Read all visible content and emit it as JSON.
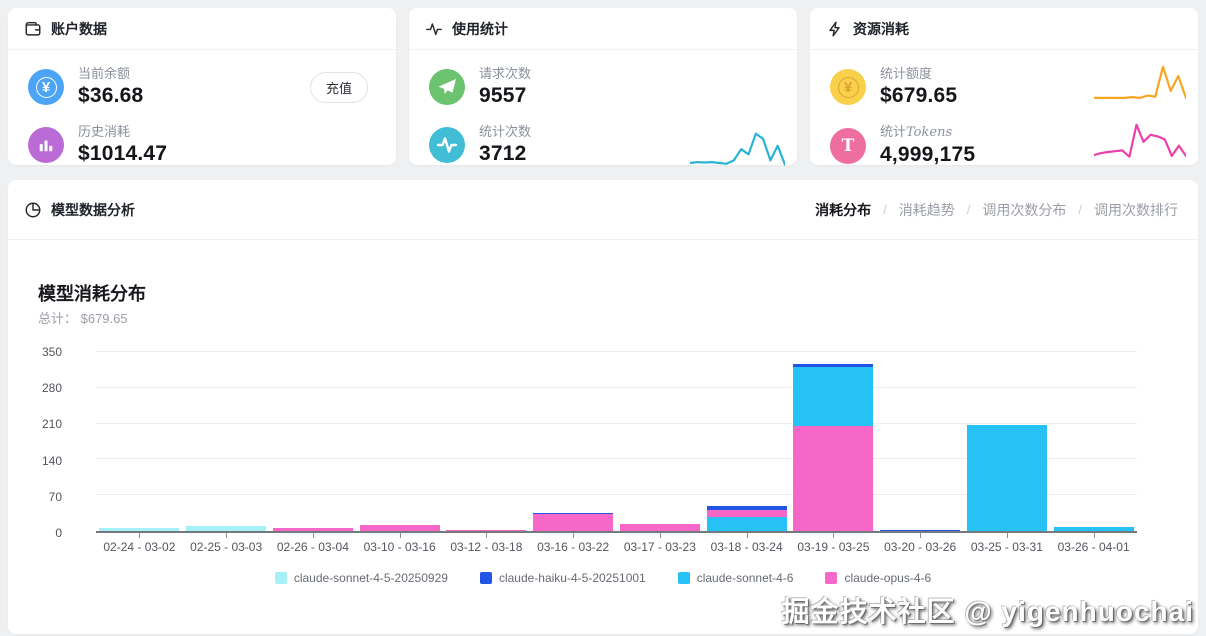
{
  "cards": {
    "account": {
      "title": "账户数据",
      "recharge_label": "充值",
      "stats": [
        {
          "label": "当前余额",
          "value": "$36.68",
          "icon": "currency-coin-icon",
          "icon_bg": "#4ba4f5"
        },
        {
          "label": "历史消耗",
          "value": "$1014.47",
          "icon": "bar-chart-icon",
          "icon_bg": "#ba6bd6"
        }
      ]
    },
    "usage": {
      "title": "使用统计",
      "stats": [
        {
          "label": "请求次数",
          "value": "9557",
          "icon": "send-icon",
          "icon_bg": "#6bc26f"
        },
        {
          "label": "统计次数",
          "value": "3712",
          "icon": "pulse-icon",
          "icon_bg": "#41bdd6"
        }
      ]
    },
    "resource": {
      "title": "资源消耗",
      "stats": [
        {
          "label": "统计额度",
          "value": "$679.65",
          "icon": "coin-icon",
          "icon_bg": "#f8d04a",
          "glyph_color": "#e09f35"
        },
        {
          "label_prefix": "统计",
          "label_suffix": "Tokens",
          "value": "4,999,175",
          "icon": "token-t-icon",
          "icon_bg": "#ee6f9f",
          "glyph_color": "#ffffff"
        }
      ]
    }
  },
  "sparklines": {
    "usage_trend": {
      "color": "#2bb3d4",
      "points": [
        14,
        16,
        15,
        16,
        14,
        12,
        20,
        46,
        34,
        82,
        70,
        20,
        54,
        10
      ]
    },
    "quota_trend": {
      "color": "#f5a623",
      "points": [
        8,
        8,
        8,
        8,
        8,
        10,
        8,
        14,
        11,
        88,
        26,
        64,
        8
      ]
    },
    "tokens_trend": {
      "color": "#ee3fa9",
      "points": [
        10,
        15,
        18,
        20,
        22,
        6,
        88,
        44,
        62,
        58,
        50,
        8,
        34,
        8
      ]
    }
  },
  "panel": {
    "title": "模型数据分析",
    "tabs": [
      {
        "label": "消耗分布",
        "active": true
      },
      {
        "label": "消耗趋势",
        "active": false
      },
      {
        "label": "调用次数分布",
        "active": false
      },
      {
        "label": "调用次数排行",
        "active": false
      }
    ]
  },
  "chart_data": {
    "type": "bar",
    "stacked": true,
    "title": "模型消耗分布",
    "subtitle": "总计： $679.65",
    "total": 679.65,
    "ylabel": "",
    "xlabel": "",
    "ylim": [
      0,
      350
    ],
    "y_ticks": [
      0,
      70,
      140,
      210,
      280,
      350
    ],
    "grid": true,
    "legend_position": "bottom",
    "legend": [
      {
        "name": "claude-sonnet-4-5-20250929",
        "color": "#a6f1f7"
      },
      {
        "name": "claude-haiku-4-5-20251001",
        "color": "#2155e6"
      },
      {
        "name": "claude-sonnet-4-6",
        "color": "#27c2f5"
      },
      {
        "name": "claude-opus-4-6",
        "color": "#f767c8"
      }
    ],
    "categories": [
      "02-24 - 03-02",
      "02-25 - 03-03",
      "02-26 - 03-04",
      "03-10 - 03-16",
      "03-12 - 03-18",
      "03-16 - 03-22",
      "03-17 - 03-23",
      "03-18 - 03-24",
      "03-19 - 03-25",
      "03-20 - 03-26",
      "03-25 - 03-31",
      "03-26 - 04-01"
    ],
    "series": [
      {
        "name": "claude-sonnet-4-5-20250929",
        "values": [
          5,
          9,
          0,
          0,
          0,
          0,
          0,
          0,
          0,
          0,
          0,
          0
        ]
      },
      {
        "name": "claude-haiku-4-5-20251001",
        "values": [
          0,
          0,
          0,
          0,
          0,
          3,
          0,
          8,
          6,
          2,
          0,
          0
        ]
      },
      {
        "name": "claude-sonnet-4-6",
        "values": [
          0,
          0,
          0,
          0,
          0,
          0,
          0,
          27,
          115,
          0,
          208,
          8
        ]
      },
      {
        "name": "claude-opus-4-6",
        "values": [
          0,
          0,
          5,
          11,
          2,
          33,
          13,
          14,
          205,
          0,
          0,
          0
        ]
      }
    ],
    "bars": [
      {
        "category": "02-24 - 03-02",
        "segments": [
          {
            "series": "claude-sonnet-4-5-20250929",
            "value": 5
          }
        ]
      },
      {
        "category": "02-25 - 03-03",
        "segments": [
          {
            "series": "claude-sonnet-4-5-20250929",
            "value": 9
          }
        ]
      },
      {
        "category": "02-26 - 03-04",
        "segments": [
          {
            "series": "claude-opus-4-6",
            "value": 5
          }
        ]
      },
      {
        "category": "03-10 - 03-16",
        "segments": [
          {
            "series": "claude-opus-4-6",
            "value": 11
          }
        ]
      },
      {
        "category": "03-12 - 03-18",
        "segments": [
          {
            "series": "claude-opus-4-6",
            "value": 2
          }
        ]
      },
      {
        "category": "03-16 - 03-22",
        "segments": [
          {
            "series": "claude-opus-4-6",
            "value": 33
          },
          {
            "series": "claude-haiku-4-5-20251001",
            "value": 3
          }
        ]
      },
      {
        "category": "03-17 - 03-23",
        "segments": [
          {
            "series": "claude-opus-4-6",
            "value": 13
          }
        ]
      },
      {
        "category": "03-18 - 03-24",
        "segments": [
          {
            "series": "claude-sonnet-4-6",
            "value": 27
          },
          {
            "series": "claude-opus-4-6",
            "value": 14
          },
          {
            "series": "claude-haiku-4-5-20251001",
            "value": 8
          }
        ]
      },
      {
        "category": "03-19 - 03-25",
        "segments": [
          {
            "series": "claude-opus-4-6",
            "value": 205
          },
          {
            "series": "claude-sonnet-4-6",
            "value": 115
          },
          {
            "series": "claude-haiku-4-5-20251001",
            "value": 6
          }
        ]
      },
      {
        "category": "03-20 - 03-26",
        "segments": [
          {
            "series": "claude-haiku-4-5-20251001",
            "value": 2
          }
        ]
      },
      {
        "category": "03-25 - 03-31",
        "segments": [
          {
            "series": "claude-sonnet-4-6",
            "value": 208
          }
        ]
      },
      {
        "category": "03-26 - 04-01",
        "segments": [
          {
            "series": "claude-sonnet-4-6",
            "value": 8
          }
        ]
      }
    ]
  },
  "watermark": "掘金技术社区 @ yigenhuochai"
}
